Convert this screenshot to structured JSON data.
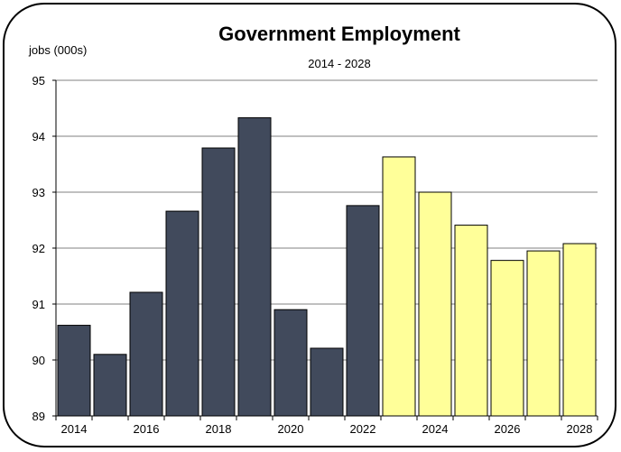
{
  "chart_data": {
    "type": "bar",
    "title": "Government Employment",
    "subtitle": "2014 - 2028",
    "ylabel": "jobs (000s)",
    "xlabel": "",
    "ylim": [
      89,
      95
    ],
    "yticks": [
      89,
      90,
      91,
      92,
      93,
      94,
      95
    ],
    "xtick_labels": [
      "2014",
      "2016",
      "2018",
      "2020",
      "2022",
      "2024",
      "2026",
      "2028"
    ],
    "grid": true,
    "legend": "none",
    "categories": [
      "2014",
      "2015",
      "2016",
      "2017",
      "2018",
      "2019",
      "2020",
      "2021",
      "2022",
      "2023",
      "2024",
      "2025",
      "2026",
      "2027",
      "2028"
    ],
    "values": [
      90.62,
      90.1,
      91.21,
      92.66,
      93.79,
      94.33,
      90.9,
      90.21,
      92.76,
      93.63,
      93.0,
      92.41,
      91.78,
      91.95,
      92.08
    ],
    "series_colors": {
      "historical": "#414a5c",
      "projected": "#ffff99"
    },
    "projection_start": "2023"
  }
}
